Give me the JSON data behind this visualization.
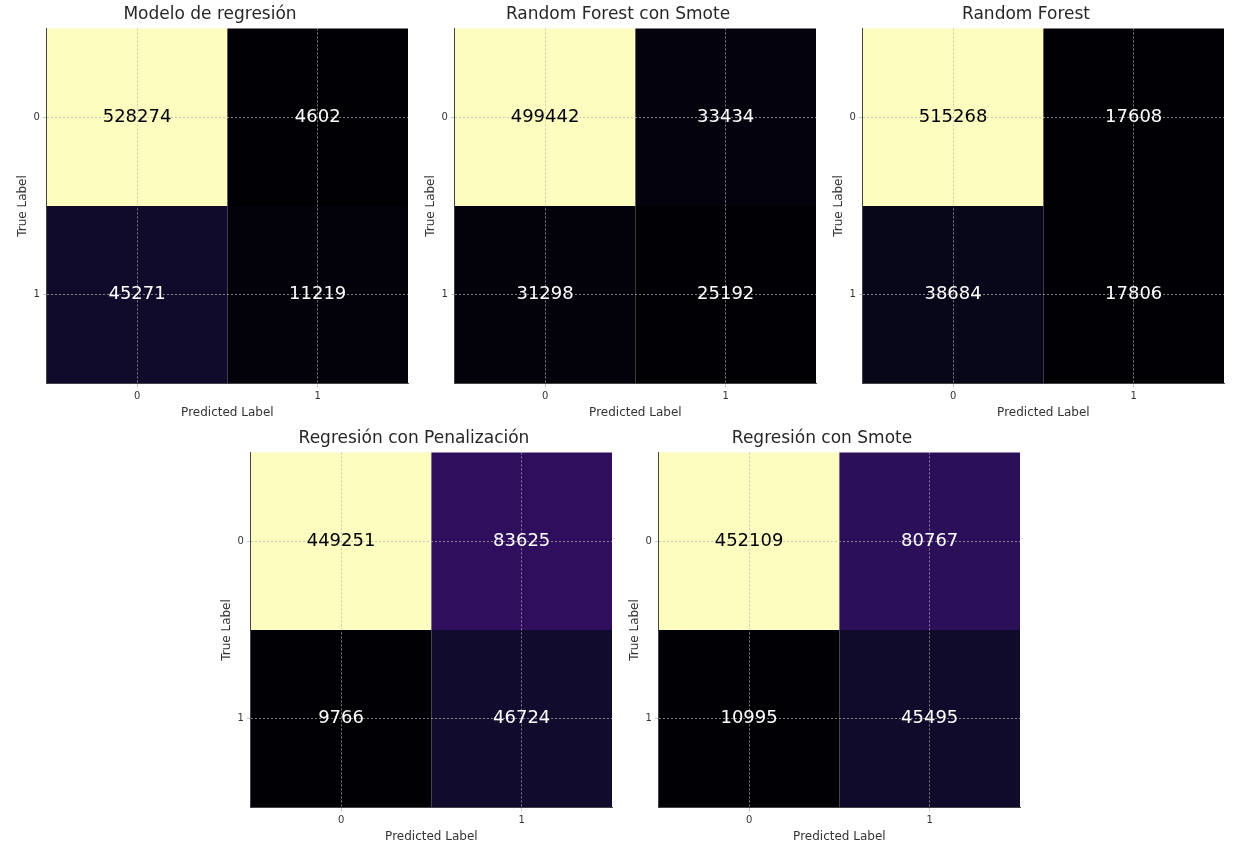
{
  "chart_data": [
    {
      "type": "heatmap",
      "title": "Modelo de regresión",
      "xlabel": "Predicted Label",
      "ylabel": "True Label",
      "categories": [
        "0",
        "1"
      ],
      "y_categories": [
        "0",
        "1"
      ],
      "cells": [
        [
          528274,
          4602
        ],
        [
          45271,
          11219
        ]
      ],
      "grid": true,
      "data_labels": true
    },
    {
      "type": "heatmap",
      "title": "Random Forest con Smote",
      "xlabel": "Predicted Label",
      "ylabel": "True Label",
      "categories": [
        "0",
        "1"
      ],
      "y_categories": [
        "0",
        "1"
      ],
      "cells": [
        [
          499442,
          33434
        ],
        [
          31298,
          25192
        ]
      ],
      "grid": true,
      "data_labels": true
    },
    {
      "type": "heatmap",
      "title": "Random Forest",
      "xlabel": "Predicted Label",
      "ylabel": "True Label",
      "categories": [
        "0",
        "1"
      ],
      "y_categories": [
        "0",
        "1"
      ],
      "cells": [
        [
          515268,
          17608
        ],
        [
          38684,
          17806
        ]
      ],
      "grid": true,
      "data_labels": true
    },
    {
      "type": "heatmap",
      "title": "Regresión con Penalización",
      "xlabel": "Predicted Label",
      "ylabel": "True Label",
      "categories": [
        "0",
        "1"
      ],
      "y_categories": [
        "0",
        "1"
      ],
      "cells": [
        [
          449251,
          83625
        ],
        [
          9766,
          46724
        ]
      ],
      "grid": true,
      "data_labels": true
    },
    {
      "type": "heatmap",
      "title": "Regresión con Smote",
      "xlabel": "Predicted Label",
      "ylabel": "True Label",
      "categories": [
        "0",
        "1"
      ],
      "y_categories": [
        "0",
        "1"
      ],
      "cells": [
        [
          452109,
          80767
        ],
        [
          10995,
          45495
        ]
      ],
      "grid": true,
      "data_labels": true
    }
  ]
}
